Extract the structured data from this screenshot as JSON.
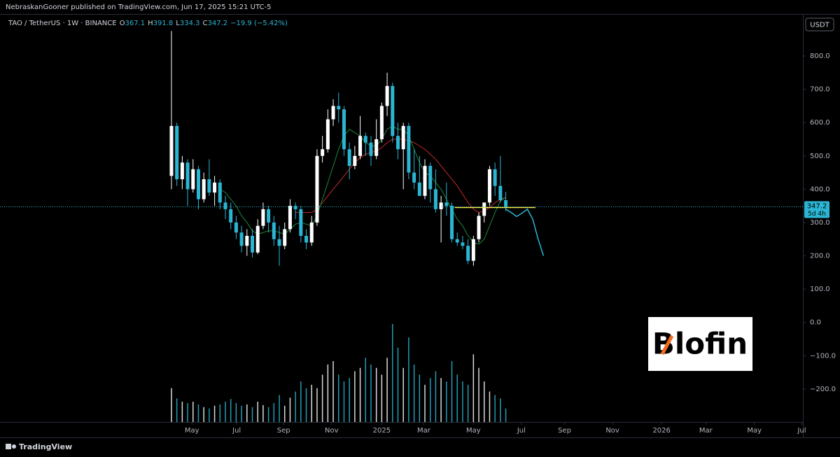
{
  "header": {
    "published": "NebraskanGooner published on TradingView.com, Jun 17, 2025 15:21 UTC-5"
  },
  "footer": {
    "brand": "TradingView"
  },
  "logo": "Blofin",
  "chart_data": {
    "type": "candlestick",
    "symbol": "TAO / TetherUS · 1W · BINANCE",
    "ohlc_prefix": [
      "O",
      "H",
      "L",
      "C"
    ],
    "change_text": "−19.9 (−5.42%)",
    "currency": "USDT",
    "last_price_label": "347.2",
    "countdown": "5d 4h",
    "up_color": "#ffffff",
    "down_color": "#2bb5d3",
    "open": [
      440,
      590,
      430,
      480,
      400,
      460,
      370,
      430,
      390,
      420,
      360,
      340,
      300,
      270,
      230,
      260,
      210,
      290,
      340,
      300,
      250,
      230,
      280,
      350,
      340,
      260,
      240,
      300,
      500,
      520,
      610,
      650,
      640,
      520,
      470,
      500,
      560,
      540,
      500,
      550,
      650,
      710,
      560,
      520,
      590,
      450,
      420,
      380,
      470,
      400,
      340,
      360,
      350,
      250,
      240,
      230,
      185,
      250,
      320,
      360,
      460,
      410,
      367.1
    ],
    "high": [
      875,
      600,
      500,
      490,
      490,
      470,
      450,
      490,
      440,
      430,
      380,
      360,
      320,
      290,
      280,
      280,
      310,
      360,
      350,
      320,
      290,
      300,
      370,
      360,
      350,
      280,
      320,
      520,
      560,
      640,
      670,
      690,
      650,
      540,
      530,
      620,
      570,
      560,
      610,
      660,
      750,
      720,
      600,
      600,
      600,
      520,
      500,
      490,
      480,
      460,
      380,
      420,
      360,
      270,
      260,
      250,
      260,
      330,
      360,
      470,
      480,
      500,
      391.8
    ],
    "low": [
      400,
      410,
      400,
      350,
      390,
      340,
      360,
      380,
      350,
      340,
      310,
      280,
      250,
      210,
      200,
      195,
      205,
      280,
      270,
      230,
      170,
      220,
      270,
      310,
      240,
      220,
      230,
      290,
      480,
      510,
      590,
      600,
      500,
      430,
      460,
      490,
      500,
      470,
      490,
      540,
      620,
      540,
      490,
      400,
      430,
      400,
      380,
      370,
      360,
      330,
      240,
      320,
      240,
      230,
      220,
      175,
      170,
      240,
      300,
      350,
      380,
      360,
      334.3
    ],
    "close": [
      590,
      430,
      480,
      400,
      460,
      370,
      430,
      390,
      420,
      360,
      340,
      300,
      270,
      230,
      260,
      210,
      290,
      340,
      300,
      250,
      230,
      280,
      350,
      340,
      260,
      240,
      300,
      500,
      520,
      610,
      650,
      640,
      520,
      470,
      500,
      560,
      540,
      500,
      550,
      650,
      710,
      560,
      520,
      590,
      450,
      420,
      380,
      470,
      400,
      340,
      360,
      350,
      250,
      240,
      230,
      185,
      250,
      320,
      360,
      460,
      410,
      367.1,
      347.2
    ],
    "volume": [
      50,
      35,
      30,
      28,
      30,
      26,
      22,
      20,
      24,
      26,
      30,
      34,
      28,
      24,
      26,
      22,
      30,
      25,
      22,
      28,
      40,
      24,
      36,
      45,
      60,
      50,
      55,
      50,
      70,
      85,
      90,
      70,
      60,
      65,
      75,
      80,
      95,
      85,
      80,
      70,
      95,
      145,
      110,
      80,
      125,
      85,
      70,
      55,
      65,
      75,
      65,
      60,
      90,
      70,
      60,
      55,
      100,
      80,
      60,
      45,
      40,
      35,
      20
    ],
    "volume_ylim": [
      0,
      150
    ],
    "ma_fast": [
      null,
      null,
      null,
      null,
      null,
      null,
      null,
      null,
      null,
      400,
      390,
      370,
      350,
      320,
      300,
      275,
      265,
      270,
      275,
      275,
      270,
      265,
      280,
      295,
      300,
      295,
      290,
      320,
      370,
      420,
      470,
      520,
      560,
      580,
      570,
      560,
      540,
      530,
      530,
      550,
      580,
      590,
      580,
      580,
      560,
      520,
      480,
      450,
      440,
      420,
      400,
      370,
      340,
      310,
      290,
      260,
      240,
      235,
      250,
      290,
      330,
      365,
      375
    ],
    "ma_slow": [
      null,
      null,
      null,
      null,
      null,
      null,
      null,
      null,
      null,
      null,
      null,
      null,
      null,
      null,
      null,
      null,
      null,
      null,
      null,
      null,
      null,
      null,
      null,
      330,
      330,
      330,
      330,
      340,
      360,
      380,
      400,
      420,
      440,
      460,
      480,
      495,
      505,
      510,
      515,
      525,
      540,
      550,
      550,
      550,
      545,
      540,
      530,
      520,
      505,
      490,
      470,
      450,
      430,
      410,
      385,
      360,
      340,
      330,
      335,
      345,
      360,
      370,
      375
    ],
    "forecast": {
      "x": [
        62,
        63,
        64,
        65,
        66,
        67,
        68,
        69
      ],
      "values": [
        340,
        330,
        318,
        328,
        340,
        310,
        250,
        200
      ]
    },
    "level": {
      "value": 345,
      "x": [
        52.5,
        67.5
      ]
    },
    "ylim": [
      -299,
      924
    ],
    "yticks": [
      {
        "value": 800,
        "label": "800.0"
      },
      {
        "value": 700,
        "label": "700.0"
      },
      {
        "value": 600,
        "label": "600.0"
      },
      {
        "value": 500,
        "label": "500.0"
      },
      {
        "value": 400,
        "label": "400.0"
      },
      {
        "value": 300,
        "label": "300.0"
      },
      {
        "value": 200,
        "label": "200.0"
      },
      {
        "value": 100,
        "label": "100.0"
      },
      {
        "value": 0,
        "label": "0.0"
      },
      {
        "value": -100,
        "label": "−100.0"
      },
      {
        "value": -200,
        "label": "−200.0"
      }
    ],
    "xlim": [
      -31.8,
      117.1
    ],
    "xticks": [
      {
        "value": 3.8,
        "label": "May"
      },
      {
        "value": 12.1,
        "label": "Jul"
      },
      {
        "value": 20.8,
        "label": "Sep"
      },
      {
        "value": 29.7,
        "label": "Nov"
      },
      {
        "value": 39.0,
        "label": "2025"
      },
      {
        "value": 46.8,
        "label": "Mar"
      },
      {
        "value": 56.0,
        "label": "May"
      },
      {
        "value": 64.9,
        "label": "Jul"
      },
      {
        "value": 72.9,
        "label": "Sep"
      },
      {
        "value": 81.8,
        "label": "Nov"
      },
      {
        "value": 90.9,
        "label": "2026"
      },
      {
        "value": 99.1,
        "label": "Mar"
      },
      {
        "value": 108.1,
        "label": "May"
      },
      {
        "value": 116.9,
        "label": "Jul"
      }
    ],
    "ma_fast_color": "#1b8a3a",
    "ma_slow_color": "#c62828",
    "forecast_color": "#2bb5d3",
    "level_color": "#f5e642"
  }
}
